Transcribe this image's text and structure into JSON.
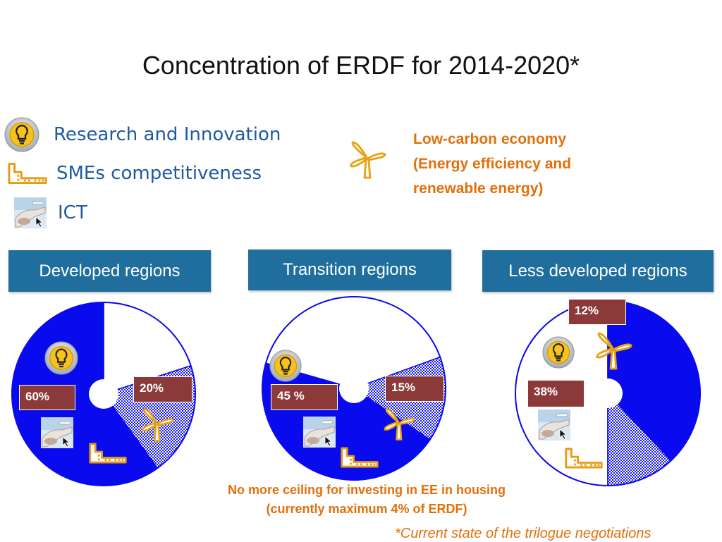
{
  "title": "Concentration of ERDF for 2014-2020*",
  "legend": {
    "research": "Research and Innovation",
    "smes": "SMEs competitiveness",
    "ict": "ICT",
    "low_carbon": [
      "Low-carbon economy",
      "(Energy efficiency and",
      "renewable energy)"
    ]
  },
  "colors": {
    "blue": "#0a0aef",
    "orange": "#e2700b",
    "header": "#1f6e9e",
    "label_bg": "#8b3a39"
  },
  "icons": [
    "lightbulb-icon",
    "factory-icon",
    "ict-photo-icon",
    "wind-turbine-icon"
  ],
  "chart_data": [
    {
      "type": "pie",
      "title": "Developed regions",
      "slices": [
        {
          "segment": "Research and Innovation, SMEs competitiveness, ICT",
          "value": 60,
          "label": "60%"
        },
        {
          "segment": "Low-carbon economy",
          "value": 20,
          "label": "20%"
        },
        {
          "segment": "Other",
          "value": 20,
          "label": ""
        }
      ]
    },
    {
      "type": "pie",
      "title": "Transition regions",
      "slices": [
        {
          "segment": "Research and Innovation, SMEs competitiveness, ICT",
          "value": 45,
          "label": "45 %"
        },
        {
          "segment": "Low-carbon economy",
          "value": 15,
          "label": "15%"
        },
        {
          "segment": "Other",
          "value": 40,
          "label": ""
        }
      ]
    },
    {
      "type": "pie",
      "title": "Less developed regions",
      "slices": [
        {
          "segment": "Research and Innovation, SMEs competitiveness, ICT",
          "value": 38,
          "label": "38%"
        },
        {
          "segment": "Low-carbon economy",
          "value": 12,
          "label": "12%"
        },
        {
          "segment": "Other",
          "value": 50,
          "label": ""
        }
      ]
    }
  ],
  "bottom_note": [
    "No more ceiling for investing in EE in housing",
    "(currently maximum 4% of ERDF)"
  ],
  "footnote": "*Current state of the trilogue negotiations"
}
